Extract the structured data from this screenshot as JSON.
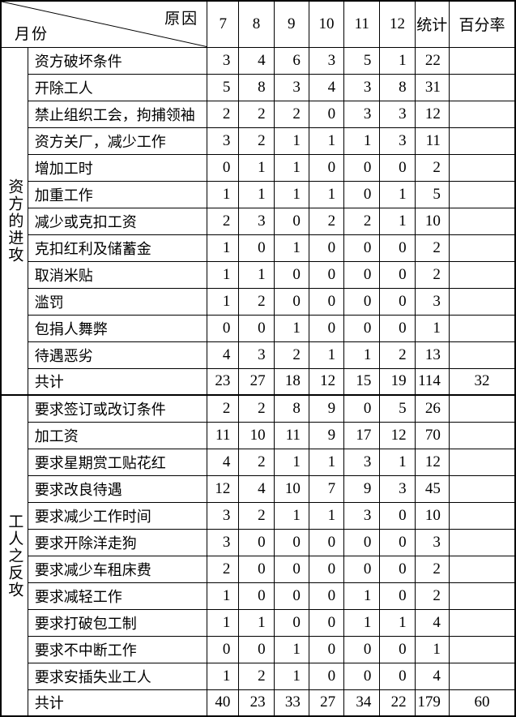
{
  "colors": {
    "border": "#000000",
    "background": "#ffffff",
    "text": "#000000"
  },
  "header": {
    "corner": {
      "top_right": "原因",
      "bottom_left": "月份"
    },
    "columns": [
      "7",
      "8",
      "9",
      "10",
      "11",
      "12",
      "统计",
      "百分率"
    ]
  },
  "sections": [
    {
      "label": "资方的进攻",
      "rows": [
        {
          "name": "资方破坏条件",
          "values": [
            "3",
            "4",
            "6",
            "3",
            "5",
            "1",
            "22",
            ""
          ]
        },
        {
          "name": "开除工人",
          "values": [
            "5",
            "8",
            "3",
            "4",
            "3",
            "8",
            "31",
            ""
          ]
        },
        {
          "name": "禁止组织工会，拘捕领袖",
          "values": [
            "2",
            "2",
            "2",
            "0",
            "3",
            "3",
            "12",
            ""
          ]
        },
        {
          "name": "资方关厂，减少工作",
          "values": [
            "3",
            "2",
            "1",
            "1",
            "1",
            "3",
            "11",
            ""
          ]
        },
        {
          "name": "增加工时",
          "values": [
            "0",
            "1",
            "1",
            "0",
            "0",
            "0",
            "2",
            ""
          ]
        },
        {
          "name": "加重工作",
          "values": [
            "1",
            "1",
            "1",
            "1",
            "0",
            "1",
            "5",
            ""
          ]
        },
        {
          "name": "减少或克扣工资",
          "values": [
            "2",
            "3",
            "0",
            "2",
            "2",
            "1",
            "10",
            ""
          ]
        },
        {
          "name": "克扣红利及储蓄金",
          "values": [
            "1",
            "0",
            "1",
            "0",
            "0",
            "0",
            "2",
            ""
          ]
        },
        {
          "name": "取消米贴",
          "values": [
            "1",
            "1",
            "0",
            "0",
            "0",
            "0",
            "2",
            ""
          ]
        },
        {
          "name": "滥罚",
          "values": [
            "1",
            "2",
            "0",
            "0",
            "0",
            "0",
            "3",
            ""
          ]
        },
        {
          "name": "包捐人舞弊",
          "values": [
            "0",
            "0",
            "1",
            "0",
            "0",
            "0",
            "1",
            ""
          ]
        },
        {
          "name": "待遇恶劣",
          "values": [
            "4",
            "3",
            "2",
            "1",
            "1",
            "2",
            "13",
            ""
          ]
        },
        {
          "name": "共计",
          "values": [
            "23",
            "27",
            "18",
            "12",
            "15",
            "19",
            "114",
            "32"
          ]
        }
      ]
    },
    {
      "label": "工人之反攻",
      "rows": [
        {
          "name": "要求签订或改订条件",
          "values": [
            "2",
            "2",
            "8",
            "9",
            "0",
            "5",
            "26",
            ""
          ]
        },
        {
          "name": "加工资",
          "values": [
            "11",
            "10",
            "11",
            "9",
            "17",
            "12",
            "70",
            ""
          ]
        },
        {
          "name": "要求星期赏工贴花红",
          "values": [
            "4",
            "2",
            "1",
            "1",
            "3",
            "1",
            "12",
            ""
          ]
        },
        {
          "name": "要求改良待遇",
          "values": [
            "12",
            "4",
            "10",
            "7",
            "9",
            "3",
            "45",
            ""
          ]
        },
        {
          "name": "要求减少工作时间",
          "values": [
            "3",
            "2",
            "1",
            "1",
            "3",
            "0",
            "10",
            ""
          ]
        },
        {
          "name": "要求开除洋走狗",
          "values": [
            "3",
            "0",
            "0",
            "0",
            "0",
            "0",
            "3",
            ""
          ]
        },
        {
          "name": "要求减少车租床费",
          "values": [
            "2",
            "0",
            "0",
            "0",
            "0",
            "0",
            "2",
            ""
          ]
        },
        {
          "name": "要求减轻工作",
          "values": [
            "1",
            "0",
            "0",
            "0",
            "1",
            "0",
            "2",
            ""
          ]
        },
        {
          "name": "要求打破包工制",
          "values": [
            "1",
            "1",
            "0",
            "0",
            "1",
            "1",
            "4",
            ""
          ]
        },
        {
          "name": "要求不中断工作",
          "values": [
            "0",
            "0",
            "1",
            "0",
            "0",
            "0",
            "1",
            ""
          ]
        },
        {
          "name": "要求安插失业工人",
          "values": [
            "1",
            "2",
            "1",
            "0",
            "0",
            "0",
            "4",
            ""
          ]
        },
        {
          "name": "共计",
          "values": [
            "40",
            "23",
            "33",
            "27",
            "34",
            "22",
            "179",
            "60"
          ]
        }
      ]
    }
  ]
}
